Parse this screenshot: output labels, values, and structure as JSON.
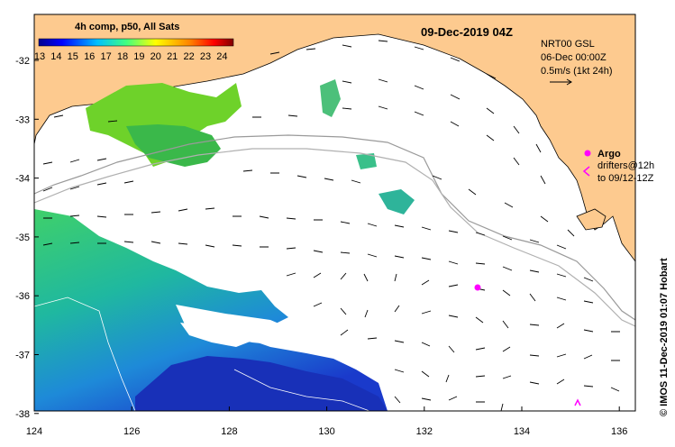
{
  "legend": {
    "title": "4h comp, p50, All Sats",
    "ticks": [
      "13",
      "14",
      "15",
      "16",
      "17",
      "18",
      "19",
      "20",
      "21",
      "22",
      "23",
      "24"
    ]
  },
  "header": {
    "date": "09-Dec-2019 04Z"
  },
  "current_key": {
    "line1": "NRT00 GSL",
    "line2": "06-Dec 00:00Z",
    "line3": "0.5m/s (1kt 24h)"
  },
  "argo": {
    "label": "Argo",
    "drift1": "drifters@12h",
    "drift2": "to 09/12-12Z"
  },
  "credit": "© IMOS 11-Dec-2019 01:07 Hobart",
  "axes": {
    "y_ticks": [
      "-32",
      "-33",
      "-34",
      "-35",
      "-36",
      "-37",
      "-38"
    ],
    "x_ticks": [
      "124",
      "126",
      "128",
      "130",
      "132",
      "134",
      "136"
    ]
  },
  "colors": {
    "land": "#fdca8f",
    "argo": "#ff00ff"
  }
}
